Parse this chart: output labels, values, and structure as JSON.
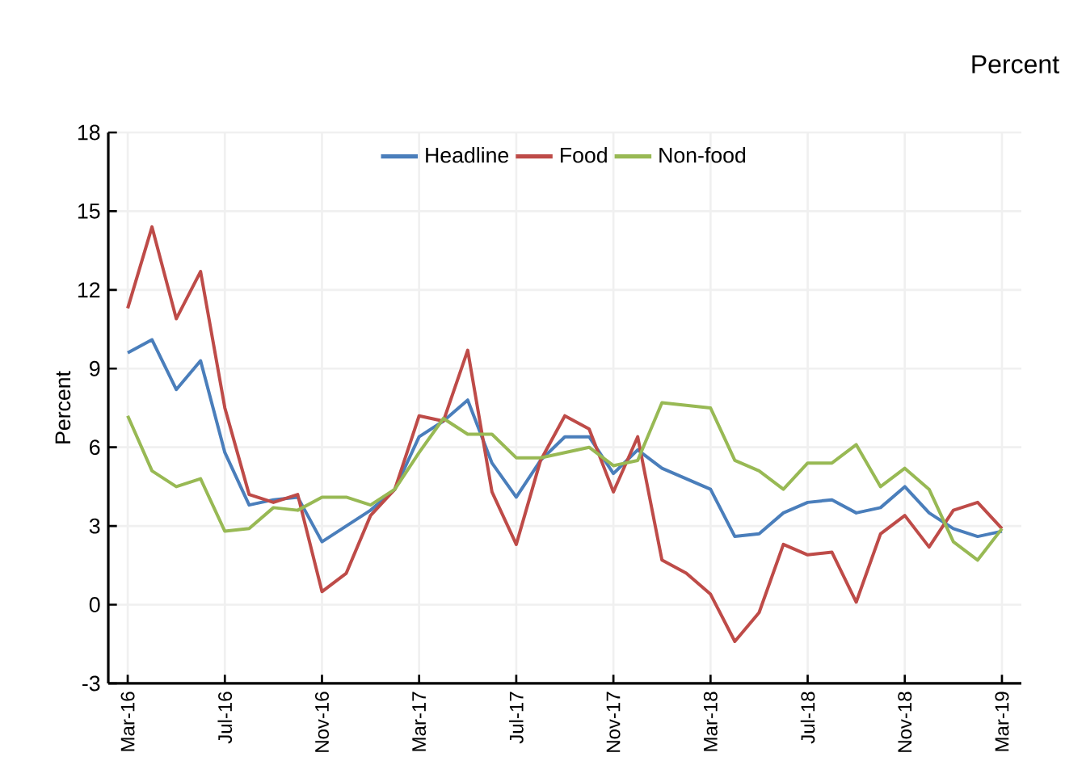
{
  "chart_data": {
    "type": "line",
    "title": "Percent",
    "ylabel": "Percent",
    "categories": [
      "Mar-16",
      null,
      null,
      null,
      "Jul-16",
      null,
      null,
      null,
      "Nov-16",
      null,
      null,
      null,
      "Mar-17",
      null,
      null,
      null,
      "Jul-17",
      null,
      null,
      null,
      "Nov-17",
      null,
      null,
      null,
      "Mar-18",
      null,
      null,
      null,
      "Jul-18",
      null,
      null,
      null,
      "Nov-18",
      null,
      null,
      null,
      "Mar-19"
    ],
    "series": [
      {
        "name": "Headline",
        "color": "#4a7ebb",
        "values": [
          9.6,
          10.1,
          8.2,
          9.3,
          5.8,
          3.8,
          4.0,
          4.1,
          2.4,
          3.0,
          3.6,
          4.4,
          6.4,
          7.0,
          7.8,
          5.4,
          4.1,
          5.5,
          6.4,
          6.4,
          5.0,
          5.9,
          5.2,
          4.8,
          4.4,
          2.6,
          2.7,
          3.5,
          3.9,
          4.0,
          3.5,
          3.7,
          4.5,
          3.5,
          2.9,
          2.6,
          2.8
        ]
      },
      {
        "name": "Food",
        "color": "#be4b48",
        "values": [
          11.3,
          14.4,
          10.9,
          12.7,
          7.5,
          4.2,
          3.9,
          4.2,
          0.5,
          1.2,
          3.4,
          4.4,
          7.2,
          7.0,
          9.7,
          4.3,
          2.3,
          5.5,
          7.2,
          6.7,
          4.3,
          6.4,
          1.7,
          1.2,
          0.4,
          -1.4,
          -0.3,
          2.3,
          1.9,
          2.0,
          0.1,
          2.7,
          3.4,
          2.2,
          3.6,
          3.9,
          2.9
        ]
      },
      {
        "name": "Non-food",
        "color": "#98b954",
        "values": [
          7.2,
          5.1,
          4.5,
          4.8,
          2.8,
          2.9,
          3.7,
          3.6,
          4.1,
          4.1,
          3.8,
          4.4,
          5.8,
          7.1,
          6.5,
          6.5,
          5.6,
          5.6,
          5.8,
          6.0,
          5.3,
          5.5,
          7.7,
          7.6,
          7.5,
          5.5,
          5.1,
          4.4,
          5.4,
          5.4,
          6.1,
          4.5,
          5.2,
          4.4,
          2.4,
          1.7,
          2.9
        ]
      }
    ],
    "ylim": [
      -3,
      18
    ],
    "yticks": [
      -3,
      0,
      3,
      6,
      9,
      12,
      15,
      18
    ],
    "grid": true,
    "legend": "top",
    "marker": "none",
    "line_style": "solid"
  }
}
